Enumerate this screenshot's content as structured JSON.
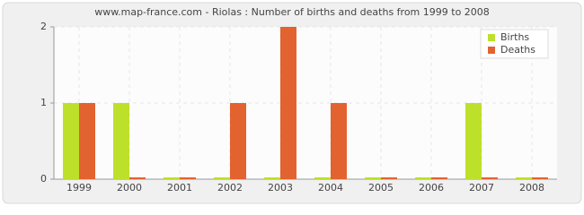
{
  "chart_data": {
    "type": "bar",
    "title": "www.map-france.com - Riolas : Number of births and deaths from 1999 to 2008",
    "categories": [
      "1999",
      "2000",
      "2001",
      "2002",
      "2003",
      "2004",
      "2005",
      "2006",
      "2007",
      "2008"
    ],
    "series": [
      {
        "name": "Births",
        "color": "#bde02a",
        "values": [
          1,
          1,
          0,
          0,
          0,
          0,
          0,
          0,
          1,
          0
        ]
      },
      {
        "name": "Deaths",
        "color": "#e2632f",
        "values": [
          1,
          0,
          0,
          1,
          2,
          1,
          0,
          0,
          0,
          0
        ]
      }
    ],
    "ylim": [
      0,
      2
    ],
    "yticks": [
      0,
      1,
      2
    ],
    "grid": true,
    "legend": "top-right"
  }
}
